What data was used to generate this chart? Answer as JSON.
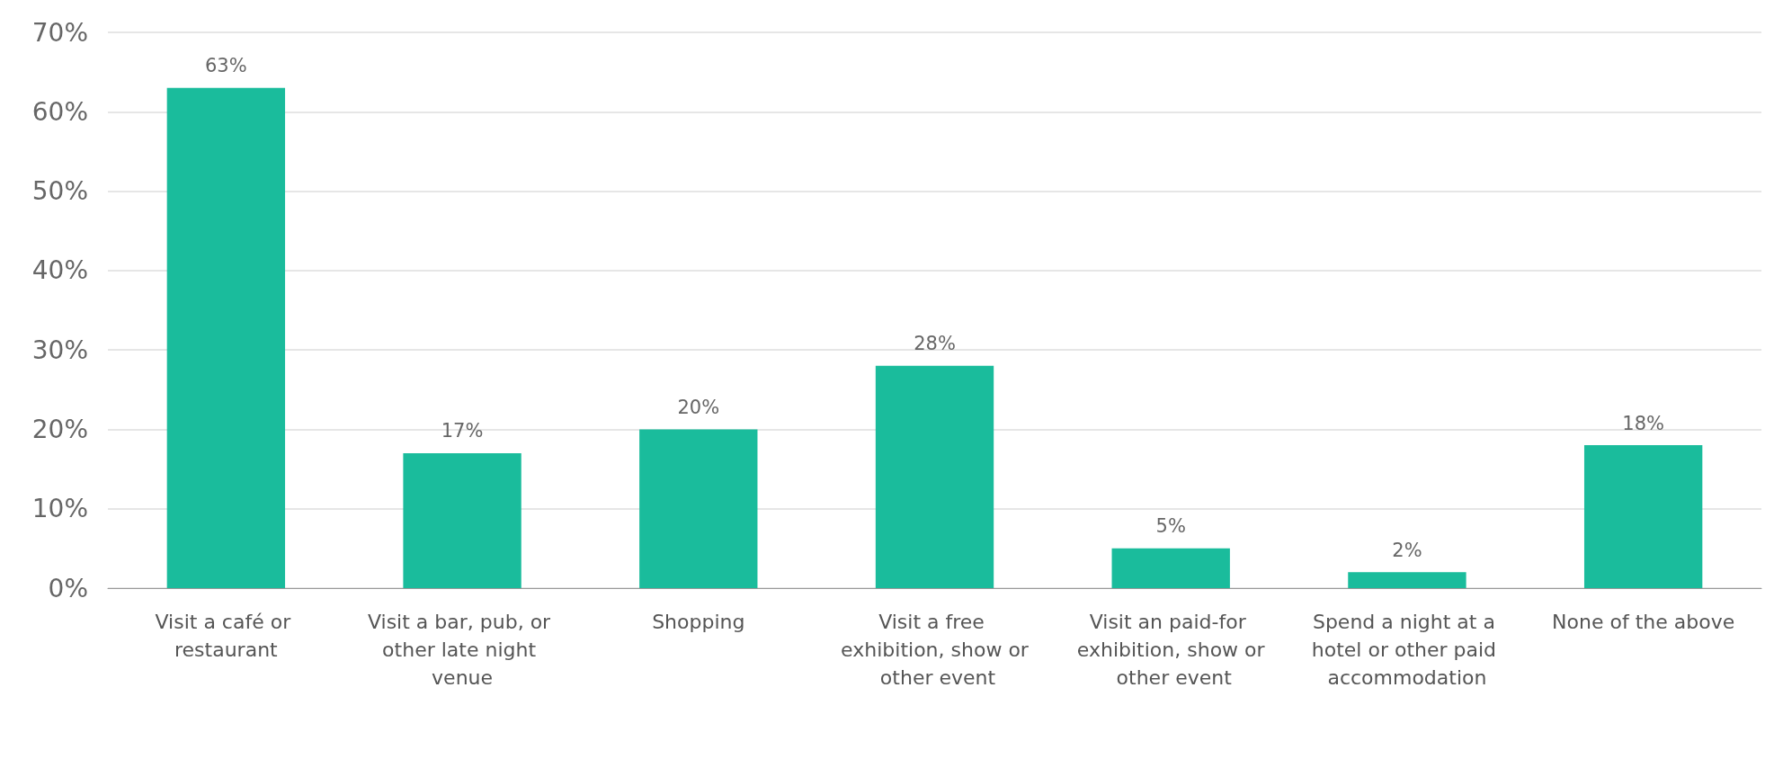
{
  "chart_data": {
    "type": "bar",
    "categories": [
      "Visit a café or restaurant",
      "Visit a bar, pub, or other late night venue",
      "Shopping",
      "Visit a free exhibition, show or other event",
      "Visit an paid-for exhibition, show or other event",
      "Spend a night at a hotel or other paid accommodation",
      "None of the above"
    ],
    "values": [
      63,
      17,
      20,
      28,
      5,
      2,
      18
    ],
    "value_labels": [
      "63%",
      "17%",
      "20%",
      "28%",
      "5%",
      "2%",
      "18%"
    ],
    "color": "#1abc9c",
    "ylim": [
      0,
      70
    ],
    "yticks": [
      {
        "value": 0,
        "label": "0%"
      },
      {
        "value": 10,
        "label": "10%"
      },
      {
        "value": 20,
        "label": "20%"
      },
      {
        "value": 30,
        "label": "30%"
      },
      {
        "value": 40,
        "label": "40%"
      },
      {
        "value": 50,
        "label": "50%"
      },
      {
        "value": 60,
        "label": "60%"
      },
      {
        "value": 70,
        "label": "70%"
      }
    ],
    "grid": "y"
  }
}
